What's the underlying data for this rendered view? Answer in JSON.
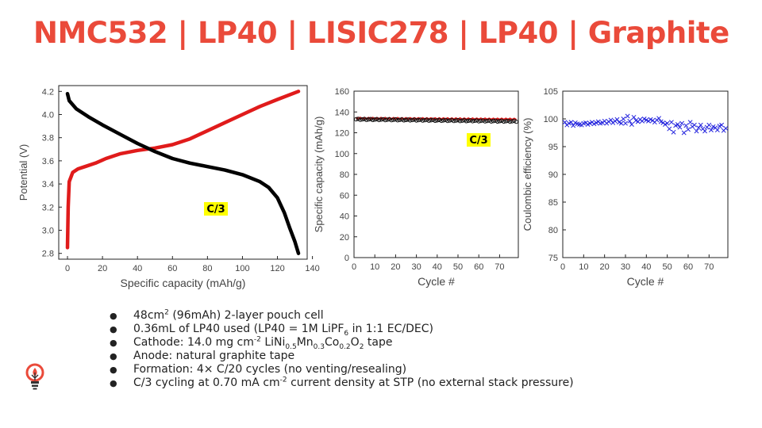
{
  "title": "NMC532 | LP40 | LISIC278 | LP40 | Graphite",
  "bullets": [
    {
      "parts": [
        {
          "t": "48cm"
        },
        {
          "t": "2",
          "s": "sup"
        },
        {
          "t": " (96mAh) 2-layer pouch cell"
        }
      ]
    },
    {
      "parts": [
        {
          "t": "0.36mL of LP40 used (LP40 = 1M LiPF"
        },
        {
          "t": "6",
          "s": "sub"
        },
        {
          "t": " in 1:1 EC/DEC)"
        }
      ]
    },
    {
      "parts": [
        {
          "t": "Cathode: 14.0 mg cm"
        },
        {
          "t": "-2",
          "s": "sup"
        },
        {
          "t": " LiNi"
        },
        {
          "t": "0.5",
          "s": "sub"
        },
        {
          "t": "Mn"
        },
        {
          "t": "0.3",
          "s": "sub"
        },
        {
          "t": "Co"
        },
        {
          "t": "0.2",
          "s": "sub"
        },
        {
          "t": "O"
        },
        {
          "t": "2",
          "s": "sub"
        },
        {
          "t": " tape"
        }
      ]
    },
    {
      "parts": [
        {
          "t": "Anode: natural graphite tape"
        }
      ]
    },
    {
      "parts": [
        {
          "t": "Formation: 4× C/20 cycles (no venting/resealing)"
        }
      ]
    },
    {
      "parts": [
        {
          "t": "C/3 cycling at 0.70 mA cm"
        },
        {
          "t": "-2",
          "s": "sup"
        },
        {
          "t": " current density at STP (no external stack pressure)"
        }
      ]
    }
  ],
  "logo": {
    "icon": "lightbulb-logo-icon",
    "color": "#ea4a3a"
  },
  "chart_data": [
    {
      "type": "line",
      "xlabel": "Specific capacity (mAh/g)",
      "ylabel": "Potential (V)",
      "xlim": [
        -5,
        137
      ],
      "ylim": [
        2.75,
        4.25
      ],
      "xticks": [
        0,
        20,
        40,
        60,
        80,
        100,
        120,
        140
      ],
      "yticks": [
        2.8,
        3.0,
        3.2,
        3.4,
        3.6,
        3.8,
        4.0,
        4.2
      ],
      "ytick_labels": [
        "2.8",
        "3.0",
        "3.2",
        "3.4",
        "3.6",
        "3.8",
        "4.0",
        "4.2"
      ],
      "annotation": "C/3",
      "grid": false,
      "series": [
        {
          "color": "#e01b1b",
          "points": [
            [
              0,
              2.85
            ],
            [
              0.4,
              3.2
            ],
            [
              1,
              3.42
            ],
            [
              3,
              3.5
            ],
            [
              6,
              3.53
            ],
            [
              10,
              3.55
            ],
            [
              16,
              3.58
            ],
            [
              22,
              3.62
            ],
            [
              30,
              3.66
            ],
            [
              40,
              3.69
            ],
            [
              50,
              3.71
            ],
            [
              60,
              3.74
            ],
            [
              70,
              3.79
            ],
            [
              80,
              3.86
            ],
            [
              90,
              3.93
            ],
            [
              100,
              4.0
            ],
            [
              110,
              4.07
            ],
            [
              120,
              4.13
            ],
            [
              132,
              4.2
            ]
          ]
        },
        {
          "color": "#000000",
          "points": [
            [
              0,
              4.18
            ],
            [
              1,
              4.12
            ],
            [
              5,
              4.05
            ],
            [
              12,
              3.98
            ],
            [
              20,
              3.91
            ],
            [
              30,
              3.83
            ],
            [
              40,
              3.75
            ],
            [
              50,
              3.68
            ],
            [
              60,
              3.62
            ],
            [
              70,
              3.58
            ],
            [
              80,
              3.55
            ],
            [
              90,
              3.52
            ],
            [
              100,
              3.48
            ],
            [
              110,
              3.42
            ],
            [
              115,
              3.37
            ],
            [
              120,
              3.28
            ],
            [
              124,
              3.15
            ],
            [
              127,
              3.02
            ],
            [
              130,
              2.9
            ],
            [
              132,
              2.8
            ]
          ]
        }
      ]
    },
    {
      "type": "scatter",
      "xlabel": "Cycle #",
      "ylabel": "Specific capacity (mAh/g)",
      "xlim": [
        0,
        79
      ],
      "ylim": [
        0,
        160
      ],
      "xticks": [
        0,
        10,
        20,
        30,
        40,
        50,
        60,
        70
      ],
      "yticks": [
        0,
        20,
        40,
        60,
        80,
        100,
        120,
        140,
        160
      ],
      "annotation": "C/3",
      "grid": false,
      "series": [
        {
          "marker": "circle-open",
          "color": "#111111",
          "y_start": 133,
          "y_end": 131
        },
        {
          "marker": "line",
          "color": "#e01b1b",
          "y_start": 134,
          "y_end": 133
        }
      ],
      "n_cycles": 78
    },
    {
      "type": "scatter",
      "xlabel": "Cycle #",
      "ylabel": "Coulombic efficiency (%)",
      "xlim": [
        0,
        79
      ],
      "ylim": [
        75,
        105
      ],
      "xticks": [
        0,
        10,
        20,
        30,
        40,
        50,
        60,
        70
      ],
      "yticks": [
        75,
        80,
        85,
        90,
        95,
        100,
        105
      ],
      "grid": false,
      "series": [
        {
          "marker": "x",
          "color": "#2222dd",
          "values": [
            99.4,
            98.9,
            99.2,
            99.4,
            98.8,
            99.3,
            99.1,
            99.0,
            98.9,
            99.2,
            99.3,
            99.0,
            99.2,
            99.4,
            99.1,
            99.3,
            99.5,
            99.2,
            99.3,
            99.6,
            99.2,
            99.5,
            99.8,
            99.3,
            99.6,
            99.9,
            99.4,
            99.2,
            100.0,
            99.2,
            100.5,
            99.6,
            99.0,
            100.3,
            99.7,
            99.5,
            99.9,
            99.6,
            100.0,
            99.8,
            99.6,
            99.9,
            99.7,
            99.4,
            99.8,
            100.1,
            99.5,
            99.3,
            99.0,
            99.2,
            98.2,
            99.4,
            97.6,
            98.8,
            99.0,
            98.5,
            99.2,
            97.5,
            98.8,
            98.1,
            99.4,
            98.6,
            98.9,
            97.8,
            98.4,
            98.9,
            98.2,
            97.8,
            98.5,
            98.9,
            98.0,
            98.6,
            98.4,
            98.0,
            98.7,
            98.9,
            97.9,
            98.3
          ]
        }
      ]
    }
  ]
}
